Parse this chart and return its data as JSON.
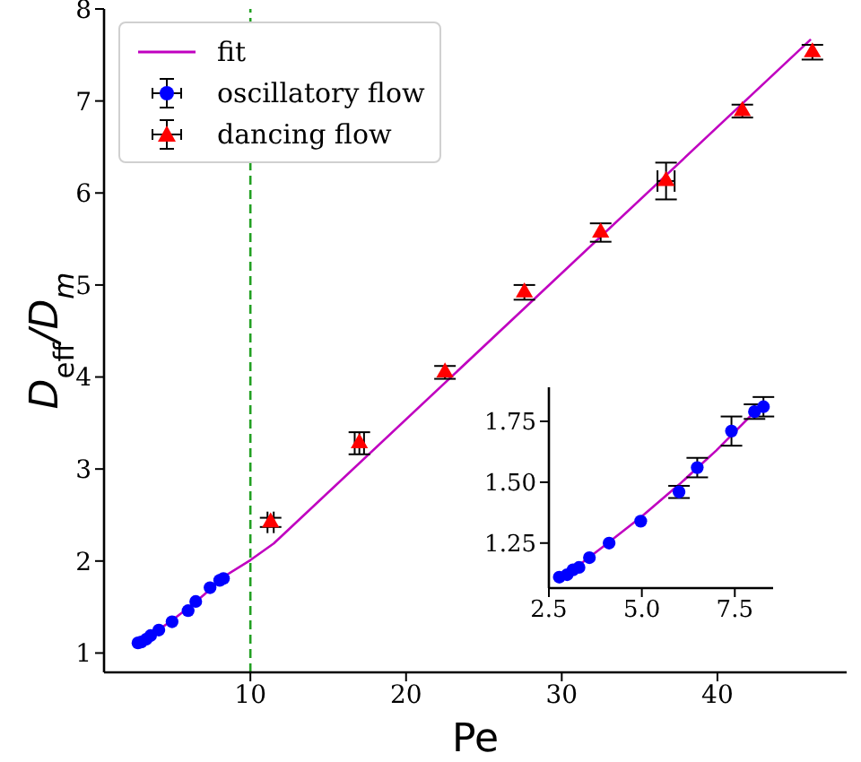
{
  "chart_data": [
    {
      "type": "scatter",
      "xlabel": "Pe",
      "ylabel": "D$_{eff}$/D$_{m}$",
      "xlim": [
        0.6,
        48.3
      ],
      "ylim": [
        0.79,
        8.0
      ],
      "xticks": [
        10,
        20,
        30,
        40
      ],
      "yticks": [
        1,
        2,
        3,
        4,
        5,
        6,
        7,
        8
      ],
      "legend": "top left",
      "ref_lines": [
        {
          "axis": "x",
          "value": 10,
          "color": "#22a022",
          "line_style": "dashed"
        }
      ],
      "series": [
        {
          "name": "fit",
          "type": "line",
          "color": "#c000c0",
          "marker": "none",
          "line_style": "solid",
          "x": [
            2.8,
            4.0,
            5.0,
            6.0,
            7.0,
            8.3,
            10.0,
            11.5,
            46.0
          ],
          "values": [
            1.1,
            1.24,
            1.36,
            1.49,
            1.63,
            1.83,
            2.01,
            2.19,
            7.67
          ]
        },
        {
          "name": "oscillatory flow",
          "color": "#0000ff",
          "marker": "circle",
          "x": [
            2.78,
            2.99,
            3.31,
            3.59,
            4.12,
            4.97,
            6.0,
            6.49,
            7.41,
            8.03,
            8.27
          ],
          "values": [
            1.11,
            1.12,
            1.15,
            1.19,
            1.25,
            1.34,
            1.46,
            1.56,
            1.71,
            1.79,
            1.81
          ]
        },
        {
          "name": "dancing flow",
          "color": "#ff0000",
          "marker": "triangle",
          "x": [
            11.3,
            17.0,
            22.5,
            27.6,
            32.5,
            36.7,
            41.6,
            46.1
          ],
          "values": [
            2.42,
            3.28,
            4.05,
            4.92,
            5.57,
            6.13,
            6.89,
            7.53
          ],
          "errors": [
            0.05,
            0.12,
            0.07,
            0.08,
            0.1,
            0.2,
            0.07,
            0.08
          ],
          "xerrors": [
            0.2,
            0.3,
            null,
            null,
            null,
            0.55,
            null,
            null
          ]
        }
      ]
    },
    {
      "type": "scatter",
      "xlim": [
        2.5,
        8.53
      ],
      "ylim": [
        1.065,
        1.89
      ],
      "xticks": [
        2.5,
        {
          "value": 5,
          "label": "5.0"
        },
        7.5
      ],
      "yticks": [
        1.25,
        {
          "value": 1.5,
          "label": "1.50"
        },
        1.75
      ],
      "series": [
        {
          "type": "line",
          "color": "#c000c0",
          "marker": "none",
          "line_style": "solid",
          "x": [
            2.8,
            4.0,
            5.0,
            6.0,
            7.0,
            8.3
          ],
          "values": [
            1.1,
            1.24,
            1.36,
            1.49,
            1.63,
            1.83
          ]
        },
        {
          "color": "#0000ff",
          "marker": "circle",
          "x": [
            2.78,
            2.99,
            3.15,
            3.31,
            3.59,
            4.12,
            4.97,
            6.0,
            6.49,
            7.41,
            8.03,
            8.27
          ],
          "values": [
            1.11,
            1.12,
            1.14,
            1.15,
            1.19,
            1.25,
            1.34,
            1.46,
            1.56,
            1.71,
            1.79,
            1.81
          ],
          "errors": [
            null,
            null,
            null,
            null,
            null,
            null,
            null,
            0.025,
            0.04,
            0.06,
            0.03,
            0.04
          ]
        }
      ]
    }
  ]
}
